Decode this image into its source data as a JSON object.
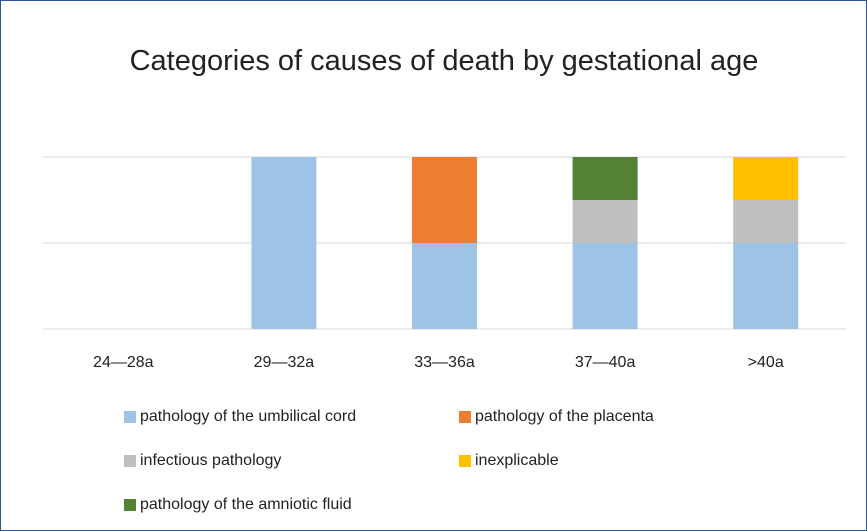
{
  "chart_data": {
    "type": "stacked_bar",
    "title": "Categories of causes of death by gestational age",
    "categories": [
      "24—28a",
      "29—32a",
      "33—36a",
      "37—40a",
      ">40a"
    ],
    "series": [
      {
        "name": "pathology of the umbilical cord",
        "color": "#9dc3e6",
        "values": [
          0,
          2,
          1,
          1,
          1
        ]
      },
      {
        "name": "pathology of the placenta",
        "color": "#ed7d31",
        "values": [
          0,
          0,
          1,
          0,
          0
        ]
      },
      {
        "name": "infectious pathology",
        "color": "#bfbfbf",
        "values": [
          0,
          0,
          0,
          0.5,
          0.5
        ]
      },
      {
        "name": "inexplicable",
        "color": "#ffc000",
        "values": [
          0,
          0,
          0,
          0,
          0.5
        ]
      },
      {
        "name": "pathology of the amniotic fluid",
        "color": "#548235",
        "values": [
          0,
          0,
          0,
          0.5,
          0
        ]
      }
    ],
    "ylim": [
      0,
      2
    ],
    "yticks": [
      0,
      1,
      2
    ],
    "grid": true,
    "legend": "bottom"
  }
}
